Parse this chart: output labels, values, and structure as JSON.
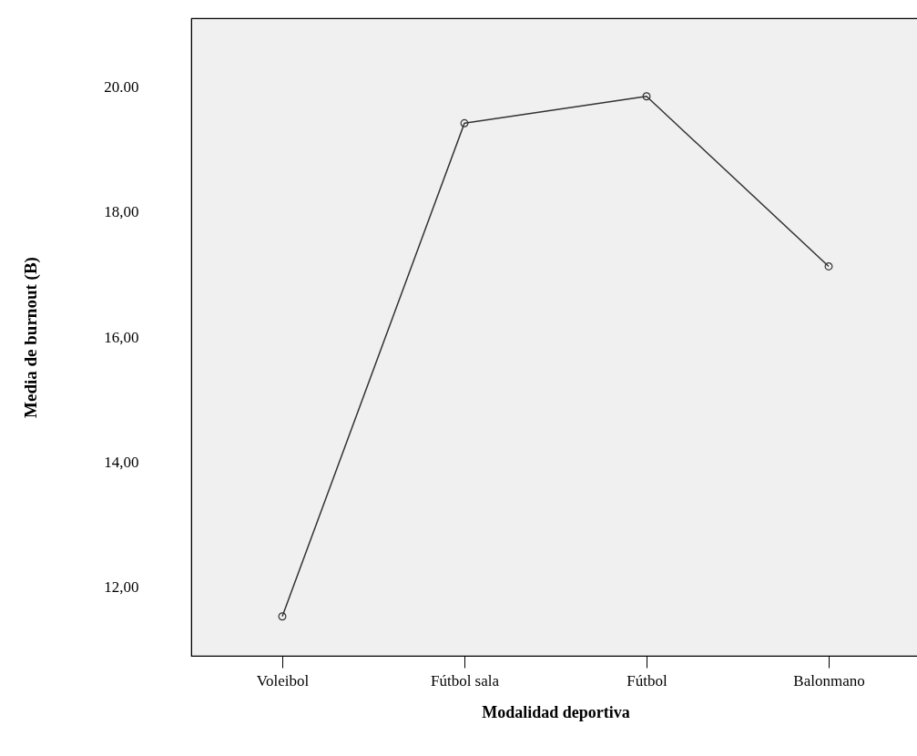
{
  "chart_data": {
    "type": "line",
    "xlabel": "Modalidad deportiva",
    "ylabel": "Media de burnout (B)",
    "categories": [
      "Voleibol",
      "Fútbol sala",
      "Fútbol",
      "Balonmano"
    ],
    "series": [
      {
        "color": "#333333",
        "values": [
          11.53,
          19.42,
          19.85,
          17.13
        ]
      }
    ],
    "ylim": [
      10.9,
      21.1
    ],
    "yticks": [
      {
        "value": 12,
        "label": "12,00"
      },
      {
        "value": 14,
        "label": "14,00"
      },
      {
        "value": 16,
        "label": "16,00"
      },
      {
        "value": 18,
        "label": "18,00"
      },
      {
        "value": 20,
        "label": "20.00"
      }
    ],
    "marker": "circle",
    "line_style": "solid",
    "grid": false
  }
}
